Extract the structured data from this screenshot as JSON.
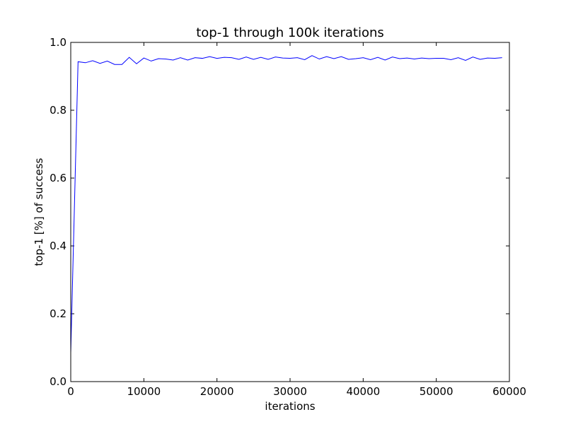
{
  "chart_data": {
    "type": "line",
    "title": "top-1 through 100k iterations",
    "xlabel": "iterations",
    "ylabel": "top-1 [%] of success",
    "xlim": [
      0,
      60000
    ],
    "ylim": [
      0.0,
      1.0
    ],
    "x_ticks": [
      "0",
      "10000",
      "20000",
      "30000",
      "40000",
      "50000",
      "60000"
    ],
    "y_ticks": [
      "0.0",
      "0.2",
      "0.4",
      "0.6",
      "0.8",
      "1.0"
    ],
    "grid": false,
    "series": [
      {
        "color": "#0000ff",
        "x": [
          0,
          1000,
          2000,
          3000,
          4000,
          5000,
          6000,
          7000,
          8000,
          9000,
          10000,
          11000,
          12000,
          13000,
          14000,
          15000,
          16000,
          17000,
          18000,
          19000,
          20000,
          21000,
          22000,
          23000,
          24000,
          25000,
          26000,
          27000,
          28000,
          29000,
          30000,
          31000,
          32000,
          33000,
          34000,
          35000,
          36000,
          37000,
          38000,
          39000,
          40000,
          41000,
          42000,
          43000,
          44000,
          45000,
          46000,
          47000,
          48000,
          49000,
          50000,
          51000,
          52000,
          53000,
          54000,
          55000,
          56000,
          57000,
          58000,
          59000
        ],
        "y": [
          0.085,
          0.943,
          0.94,
          0.946,
          0.938,
          0.945,
          0.935,
          0.935,
          0.956,
          0.937,
          0.954,
          0.945,
          0.952,
          0.951,
          0.948,
          0.955,
          0.948,
          0.955,
          0.953,
          0.958,
          0.953,
          0.956,
          0.955,
          0.95,
          0.957,
          0.95,
          0.956,
          0.95,
          0.957,
          0.954,
          0.953,
          0.955,
          0.949,
          0.961,
          0.951,
          0.958,
          0.952,
          0.958,
          0.95,
          0.952,
          0.955,
          0.949,
          0.956,
          0.948,
          0.957,
          0.952,
          0.954,
          0.951,
          0.954,
          0.952,
          0.953,
          0.953,
          0.949,
          0.955,
          0.947,
          0.957,
          0.95,
          0.954,
          0.953,
          0.955
        ]
      }
    ]
  }
}
